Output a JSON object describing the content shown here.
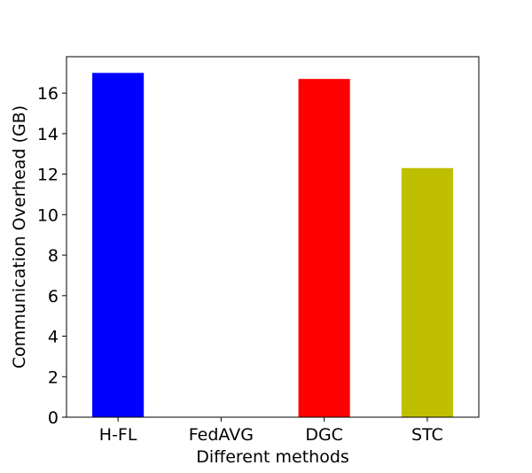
{
  "chart_data": {
    "type": "bar",
    "title": "",
    "xlabel": "Different methods",
    "ylabel": "Communication Overhead (GB)",
    "categories": [
      "H-FL",
      "FedAVG",
      "DGC",
      "STC"
    ],
    "values": [
      17.0,
      0,
      16.7,
      12.3
    ],
    "colors": [
      "#0000ff",
      "#ffffff",
      "#ff0000",
      "#bfbf00"
    ],
    "ylim": [
      0,
      17.8
    ],
    "yticks": [
      0,
      2,
      4,
      6,
      8,
      10,
      12,
      14,
      16
    ],
    "grid": false,
    "legend": "none"
  }
}
